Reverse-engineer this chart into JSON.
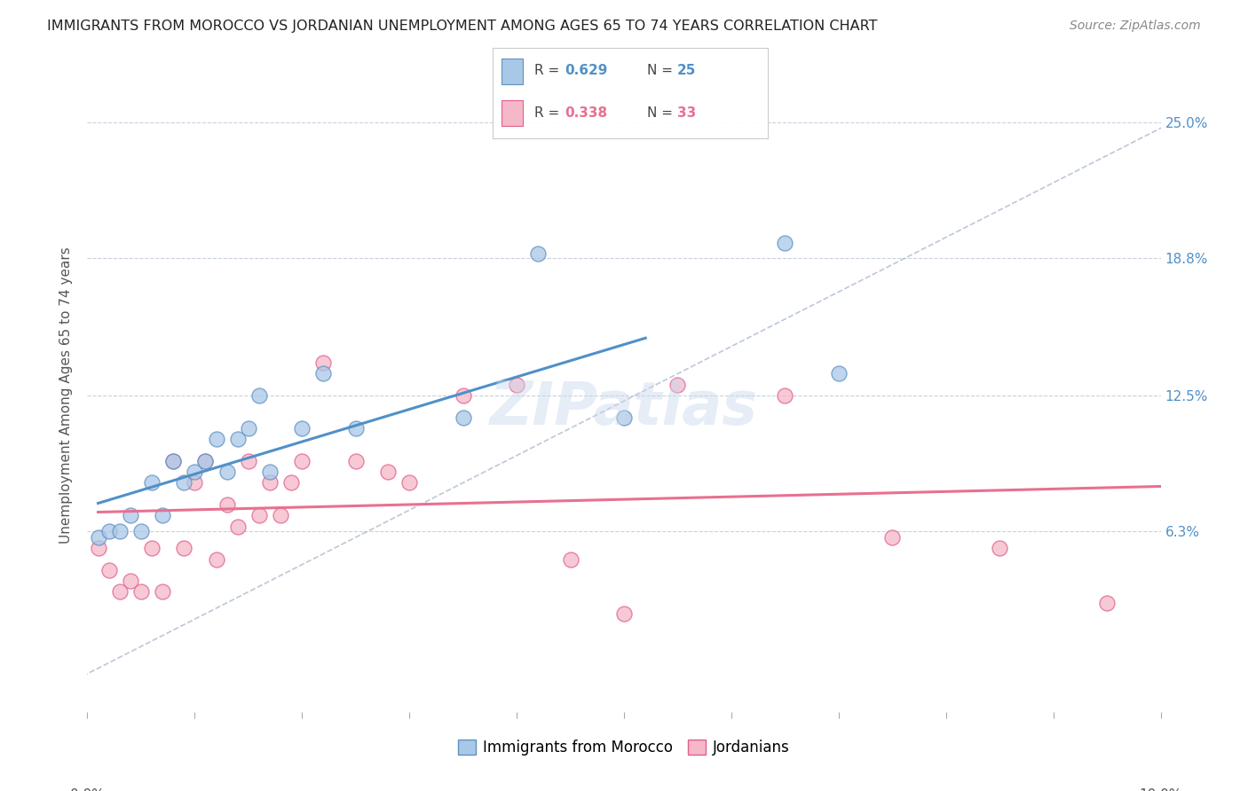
{
  "title": "IMMIGRANTS FROM MOROCCO VS JORDANIAN UNEMPLOYMENT AMONG AGES 65 TO 74 YEARS CORRELATION CHART",
  "source": "Source: ZipAtlas.com",
  "ylabel": "Unemployment Among Ages 65 to 74 years",
  "ytick_labels": [
    "6.3%",
    "12.5%",
    "18.8%",
    "25.0%"
  ],
  "ytick_values": [
    6.3,
    12.5,
    18.8,
    25.0
  ],
  "xlim": [
    0.0,
    10.0
  ],
  "ylim": [
    -2.0,
    27.0
  ],
  "color_blue": "#a8c8e8",
  "color_pink": "#f4b8c8",
  "color_blue_edge": "#6090c0",
  "color_pink_edge": "#e06090",
  "color_blue_line": "#5090c8",
  "color_pink_line": "#e87090",
  "color_dashed": "#a0b0c8",
  "watermark": "ZIPatlas",
  "series1_label": "Immigrants from Morocco",
  "series2_label": "Jordanians",
  "morocco_x": [
    0.1,
    0.2,
    0.3,
    0.4,
    0.5,
    0.6,
    0.7,
    0.8,
    0.9,
    1.0,
    1.1,
    1.2,
    1.3,
    1.4,
    1.5,
    1.6,
    1.7,
    2.0,
    2.2,
    2.5,
    3.5,
    4.2,
    5.0,
    6.5,
    7.0
  ],
  "morocco_y": [
    6.0,
    6.3,
    6.3,
    7.0,
    6.3,
    8.5,
    7.0,
    9.5,
    8.5,
    9.0,
    9.5,
    10.5,
    9.0,
    10.5,
    11.0,
    12.5,
    9.0,
    11.0,
    13.5,
    11.0,
    11.5,
    19.0,
    11.5,
    19.5,
    13.5
  ],
  "jordan_x": [
    0.1,
    0.2,
    0.3,
    0.4,
    0.5,
    0.6,
    0.7,
    0.8,
    0.9,
    1.0,
    1.1,
    1.2,
    1.3,
    1.4,
    1.5,
    1.6,
    1.7,
    1.8,
    1.9,
    2.0,
    2.2,
    2.5,
    2.8,
    3.0,
    3.5,
    4.0,
    4.5,
    5.0,
    5.5,
    6.5,
    7.5,
    8.5,
    9.5
  ],
  "jordan_y": [
    5.5,
    4.5,
    3.5,
    4.0,
    3.5,
    5.5,
    3.5,
    9.5,
    5.5,
    8.5,
    9.5,
    5.0,
    7.5,
    6.5,
    9.5,
    7.0,
    8.5,
    7.0,
    8.5,
    9.5,
    14.0,
    9.5,
    9.0,
    8.5,
    12.5,
    13.0,
    5.0,
    2.5,
    13.0,
    12.5,
    6.0,
    5.5,
    3.0
  ],
  "legend1_r_text": "R = ",
  "legend1_r_val": "0.629",
  "legend1_n_text": "N = ",
  "legend1_n_val": "25",
  "legend2_r_text": "R = ",
  "legend2_r_val": "0.338",
  "legend2_n_text": "N = ",
  "legend2_n_val": "33"
}
